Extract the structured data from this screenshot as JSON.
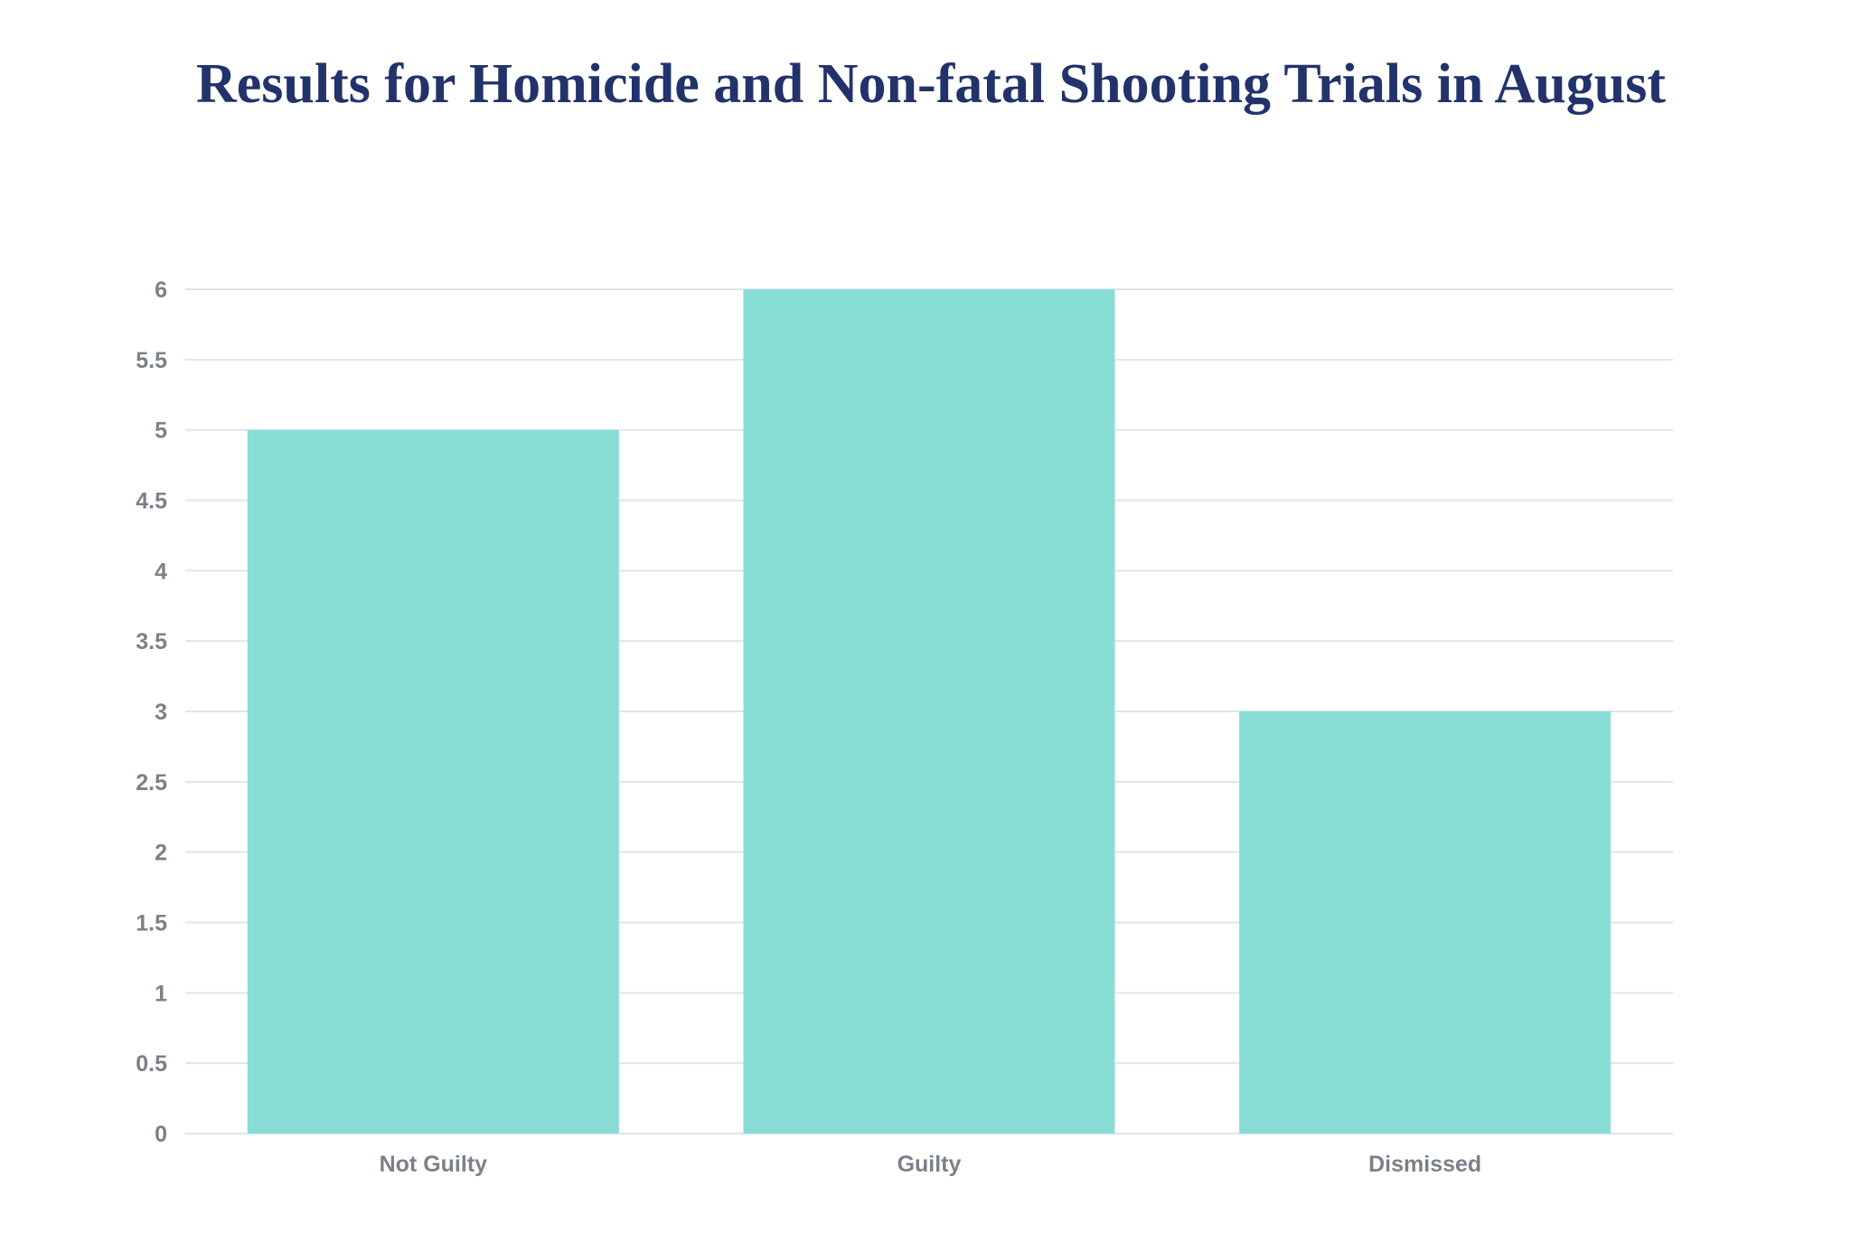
{
  "chart_data": {
    "type": "bar",
    "title": "Results for Homicide and Non-fatal Shooting Trials in August",
    "categories": [
      "Not Guilty",
      "Guilty",
      "Dismissed"
    ],
    "values": [
      5,
      6,
      3
    ],
    "xlabel": "",
    "ylabel": "",
    "ylim": [
      0,
      6
    ],
    "yticks": [
      "0",
      "0.5",
      "1",
      "1.5",
      "2",
      "2.5",
      "3",
      "3.5",
      "4",
      "4.5",
      "5",
      "5.5",
      "6"
    ],
    "grid": true,
    "legend": "none",
    "colors": {
      "bar": "#88ddd5",
      "grid": "#dde6ee",
      "title": "#22336b",
      "tick": "#7b8189"
    }
  }
}
